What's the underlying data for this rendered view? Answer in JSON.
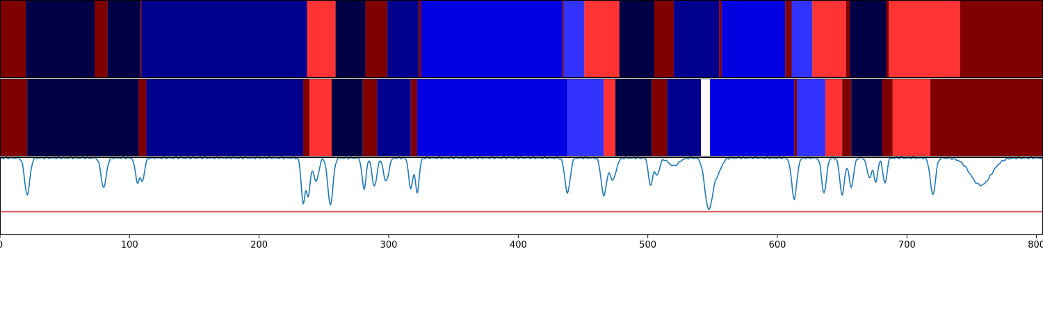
{
  "chart_data": {
    "type": "heatmap",
    "title": "",
    "xlabel": "",
    "ylabel": "",
    "xlim": [
      0,
      805
    ],
    "x_ticks": [
      "0",
      "100",
      "200",
      "300",
      "400",
      "500",
      "600",
      "700",
      "800"
    ],
    "x_tick_values": [
      0,
      100,
      200,
      300,
      400,
      500,
      600,
      700,
      800
    ],
    "colors": {
      "navy": "#000045",
      "darkblue": "#00008f",
      "blue": "#0000e0",
      "lightblue": "#3333ff",
      "red": "#ff3333",
      "darkred": "#800000",
      "white": "#ffffff",
      "line": "#1f77b4",
      "threshold": "#d62728"
    },
    "rows": [
      {
        "segments": [
          {
            "start": 0,
            "end": 20,
            "color": "darkred"
          },
          {
            "start": 20,
            "end": 73,
            "color": "navy"
          },
          {
            "start": 73,
            "end": 83,
            "color": "darkred"
          },
          {
            "start": 83,
            "end": 108,
            "color": "navy"
          },
          {
            "start": 108,
            "end": 109,
            "color": "darkred"
          },
          {
            "start": 109,
            "end": 237,
            "color": "darkblue"
          },
          {
            "start": 237,
            "end": 259,
            "color": "red"
          },
          {
            "start": 259,
            "end": 282,
            "color": "navy"
          },
          {
            "start": 282,
            "end": 299,
            "color": "darkred"
          },
          {
            "start": 299,
            "end": 323,
            "color": "darkblue"
          },
          {
            "start": 323,
            "end": 325,
            "color": "darkred"
          },
          {
            "start": 325,
            "end": 434,
            "color": "blue"
          },
          {
            "start": 434,
            "end": 435,
            "color": "darkred"
          },
          {
            "start": 435,
            "end": 451,
            "color": "lightblue"
          },
          {
            "start": 451,
            "end": 478,
            "color": "red"
          },
          {
            "start": 478,
            "end": 505,
            "color": "navy"
          },
          {
            "start": 505,
            "end": 520,
            "color": "darkred"
          },
          {
            "start": 520,
            "end": 555,
            "color": "darkblue"
          },
          {
            "start": 555,
            "end": 557,
            "color": "darkred"
          },
          {
            "start": 557,
            "end": 606,
            "color": "blue"
          },
          {
            "start": 606,
            "end": 611,
            "color": "darkred"
          },
          {
            "start": 611,
            "end": 627,
            "color": "lightblue"
          },
          {
            "start": 627,
            "end": 653,
            "color": "red"
          },
          {
            "start": 653,
            "end": 656,
            "color": "darkred"
          },
          {
            "start": 656,
            "end": 684,
            "color": "navy"
          },
          {
            "start": 684,
            "end": 686,
            "color": "darkred"
          },
          {
            "start": 686,
            "end": 741,
            "color": "red"
          },
          {
            "start": 741,
            "end": 805,
            "color": "darkred"
          }
        ]
      },
      {
        "segments": [
          {
            "start": 0,
            "end": 21,
            "color": "darkred"
          },
          {
            "start": 21,
            "end": 107,
            "color": "navy"
          },
          {
            "start": 107,
            "end": 113,
            "color": "darkred"
          },
          {
            "start": 113,
            "end": 234,
            "color": "darkblue"
          },
          {
            "start": 234,
            "end": 239,
            "color": "darkred"
          },
          {
            "start": 239,
            "end": 256,
            "color": "red"
          },
          {
            "start": 256,
            "end": 280,
            "color": "navy"
          },
          {
            "start": 280,
            "end": 291,
            "color": "darkred"
          },
          {
            "start": 291,
            "end": 317,
            "color": "darkblue"
          },
          {
            "start": 317,
            "end": 322,
            "color": "darkred"
          },
          {
            "start": 322,
            "end": 438,
            "color": "blue"
          },
          {
            "start": 438,
            "end": 466,
            "color": "lightblue"
          },
          {
            "start": 466,
            "end": 475,
            "color": "red"
          },
          {
            "start": 475,
            "end": 503,
            "color": "navy"
          },
          {
            "start": 503,
            "end": 515,
            "color": "darkred"
          },
          {
            "start": 515,
            "end": 541,
            "color": "darkblue"
          },
          {
            "start": 541,
            "end": 548,
            "color": "white"
          },
          {
            "start": 548,
            "end": 613,
            "color": "blue"
          },
          {
            "start": 613,
            "end": 615,
            "color": "darkred"
          },
          {
            "start": 615,
            "end": 637,
            "color": "lightblue"
          },
          {
            "start": 637,
            "end": 650,
            "color": "red"
          },
          {
            "start": 650,
            "end": 657,
            "color": "darkred"
          },
          {
            "start": 657,
            "end": 681,
            "color": "navy"
          },
          {
            "start": 681,
            "end": 689,
            "color": "darkred"
          },
          {
            "start": 689,
            "end": 718,
            "color": "red"
          },
          {
            "start": 718,
            "end": 805,
            "color": "darkred"
          }
        ]
      }
    ],
    "line_panel": {
      "ylim": [
        0,
        1
      ],
      "threshold": 0.3,
      "baseline": 0.99,
      "dips": [
        {
          "x": 21,
          "depth": 0.47,
          "width": 2.0
        },
        {
          "x": 80,
          "depth": 0.38,
          "width": 2.0
        },
        {
          "x": 106,
          "depth": 0.3,
          "width": 1.6
        },
        {
          "x": 110,
          "depth": 0.28,
          "width": 1.6
        },
        {
          "x": 234,
          "depth": 0.57,
          "width": 1.5
        },
        {
          "x": 238,
          "depth": 0.47,
          "width": 1.5
        },
        {
          "x": 244,
          "depth": 0.3,
          "width": 2.0
        },
        {
          "x": 255,
          "depth": 0.6,
          "width": 2.0
        },
        {
          "x": 281,
          "depth": 0.4,
          "width": 1.5
        },
        {
          "x": 289,
          "depth": 0.37,
          "width": 1.8
        },
        {
          "x": 298,
          "depth": 0.3,
          "width": 2.0
        },
        {
          "x": 317,
          "depth": 0.4,
          "width": 1.5
        },
        {
          "x": 322,
          "depth": 0.44,
          "width": 1.5
        },
        {
          "x": 438,
          "depth": 0.45,
          "width": 2.0
        },
        {
          "x": 466,
          "depth": 0.48,
          "width": 2.0
        },
        {
          "x": 473,
          "depth": 0.28,
          "width": 2.5
        },
        {
          "x": 502,
          "depth": 0.35,
          "width": 1.5
        },
        {
          "x": 507,
          "depth": 0.22,
          "width": 2.0
        },
        {
          "x": 520,
          "depth": 0.1,
          "width": 4.0
        },
        {
          "x": 547,
          "depth": 0.65,
          "width": 3.0
        },
        {
          "x": 554,
          "depth": 0.18,
          "width": 3.0
        },
        {
          "x": 613,
          "depth": 0.52,
          "width": 2.0
        },
        {
          "x": 636,
          "depth": 0.45,
          "width": 1.8
        },
        {
          "x": 650,
          "depth": 0.47,
          "width": 1.8
        },
        {
          "x": 657,
          "depth": 0.37,
          "width": 1.8
        },
        {
          "x": 671,
          "depth": 0.25,
          "width": 1.8
        },
        {
          "x": 676,
          "depth": 0.3,
          "width": 1.5
        },
        {
          "x": 683,
          "depth": 0.33,
          "width": 1.5
        },
        {
          "x": 720,
          "depth": 0.47,
          "width": 2.0
        },
        {
          "x": 757,
          "depth": 0.35,
          "width": 8.0
        }
      ]
    }
  }
}
